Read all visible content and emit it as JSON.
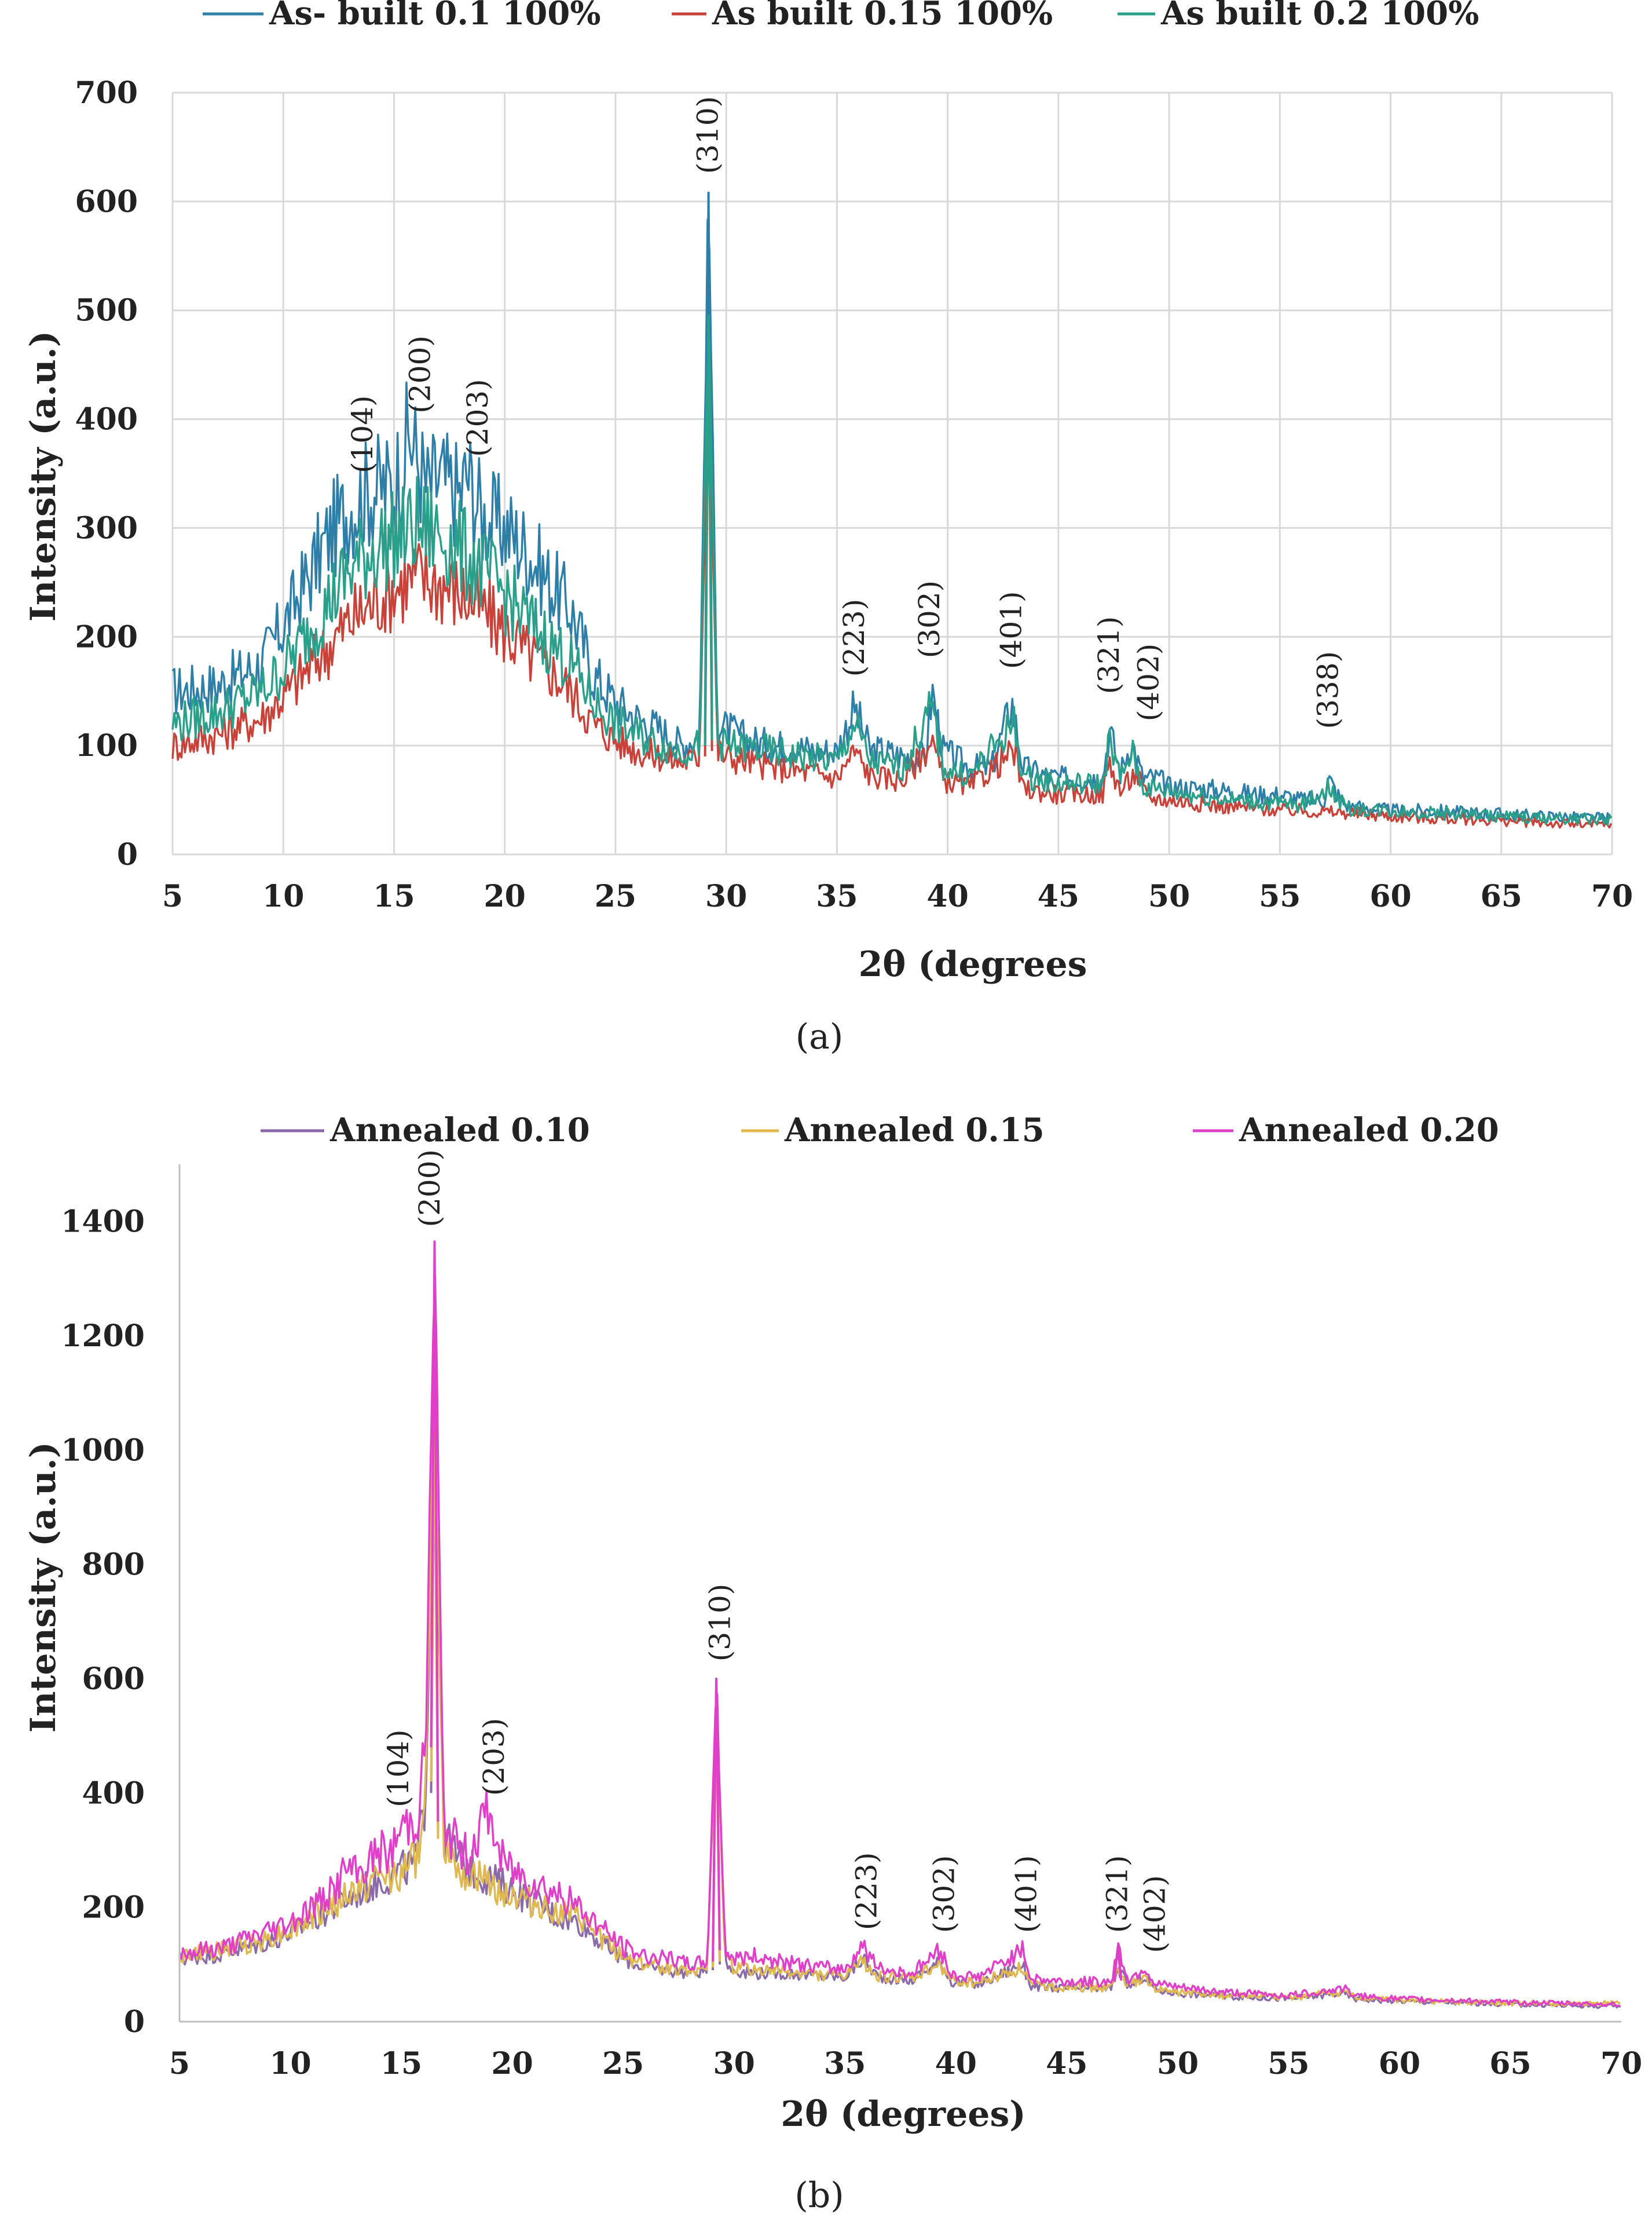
{
  "chart_data": [
    {
      "panel": "a",
      "panel_label": "(a)",
      "type": "line",
      "xlabel": "2θ (degrees",
      "ylabel": "Intensity (a.u.)",
      "xlim": [
        5,
        70
      ],
      "ylim": [
        0,
        700
      ],
      "xticks": [
        "5",
        "10",
        "15",
        "20",
        "25",
        "30",
        "35",
        "40",
        "45",
        "50",
        "55",
        "60",
        "65",
        "70"
      ],
      "yticks": [
        "0",
        "100",
        "200",
        "300",
        "400",
        "500",
        "600",
        "700"
      ],
      "legend_position": "top",
      "grid": true,
      "series": [
        {
          "name": "As- built 0.1 100%",
          "color": "#2e7fa8",
          "x": [
            5,
            7,
            9,
            10,
            12,
            13,
            14,
            15,
            15.7,
            16.5,
            17,
            18,
            18.3,
            19,
            20,
            21,
            22,
            23,
            24,
            25,
            26,
            27,
            28,
            28.8,
            29.2,
            29.6,
            30,
            31,
            32,
            33,
            34,
            35,
            35.8,
            36.5,
            37,
            38,
            39,
            39.3,
            39.8,
            41,
            42,
            42.9,
            43.4,
            44,
            45,
            46,
            47,
            47.3,
            47.8,
            48.3,
            48.8,
            49.5,
            50,
            52,
            54,
            55,
            56,
            57,
            57.2,
            57.6,
            58,
            60,
            62,
            64,
            66,
            68,
            70
          ],
          "y": [
            150,
            155,
            175,
            210,
            290,
            320,
            335,
            340,
            385,
            335,
            345,
            330,
            350,
            310,
            300,
            280,
            250,
            225,
            165,
            140,
            125,
            115,
            100,
            110,
            608,
            120,
            115,
            105,
            100,
            100,
            95,
            95,
            135,
            95,
            95,
            90,
            90,
            150,
            95,
            80,
            80,
            140,
            80,
            75,
            70,
            70,
            70,
            115,
            75,
            105,
            70,
            70,
            62,
            60,
            55,
            55,
            50,
            50,
            70,
            55,
            45,
            40,
            40,
            38,
            36,
            34,
            33
          ]
        },
        {
          "name": "As built 0.15 100%",
          "color": "#c9423a",
          "x": [
            5,
            7,
            9,
            10,
            12,
            13,
            14,
            15,
            16,
            17,
            18,
            19,
            20,
            21,
            22,
            23,
            24,
            25,
            26,
            27,
            28,
            28.8,
            29.2,
            29.6,
            30,
            32,
            34,
            35,
            35.8,
            36.5,
            38,
            39.3,
            39.8,
            41,
            43,
            43.4,
            45,
            47,
            47.3,
            47.8,
            48.5,
            49,
            50,
            52,
            54,
            56,
            58,
            60,
            62,
            64,
            66,
            68,
            70
          ],
          "y": [
            100,
            110,
            125,
            145,
            190,
            215,
            230,
            245,
            255,
            250,
            240,
            225,
            205,
            185,
            170,
            150,
            120,
            105,
            95,
            90,
            85,
            90,
            470,
            95,
            90,
            80,
            75,
            70,
            95,
            72,
            68,
            105,
            68,
            62,
            95,
            60,
            55,
            55,
            85,
            58,
            75,
            52,
            50,
            45,
            42,
            40,
            38,
            35,
            33,
            32,
            30,
            28,
            27
          ]
        },
        {
          "name": "As built 0.2 100%",
          "color": "#2aa08a",
          "x": [
            5,
            7,
            9,
            10,
            12,
            13,
            14,
            15,
            16,
            17,
            18,
            19,
            20,
            21,
            22,
            23,
            24,
            25,
            26,
            27,
            28,
            28.8,
            29.2,
            29.6,
            30,
            31,
            32,
            34,
            35,
            35.8,
            36.5,
            38,
            39.3,
            39.8,
            41,
            43,
            43.4,
            45,
            47,
            47.3,
            47.8,
            48.3,
            48.8,
            50,
            52,
            54,
            56,
            57.2,
            58,
            60,
            62,
            64,
            66,
            68,
            70
          ],
          "y": [
            120,
            130,
            150,
            170,
            230,
            260,
            280,
            290,
            300,
            295,
            280,
            260,
            240,
            215,
            195,
            175,
            140,
            120,
            110,
            100,
            95,
            100,
            495,
            105,
            100,
            98,
            95,
            88,
            85,
            120,
            85,
            80,
            135,
            80,
            72,
            120,
            72,
            65,
            65,
            105,
            68,
            95,
            62,
            58,
            52,
            48,
            45,
            62,
            42,
            40,
            38,
            36,
            34,
            33,
            32
          ]
        }
      ],
      "annotations": [
        {
          "label": "(104)",
          "x": 13.6,
          "y": 345
        },
        {
          "label": "(200)",
          "x": 16.2,
          "y": 400
        },
        {
          "label": "(203)",
          "x": 18.8,
          "y": 360
        },
        {
          "label": "(310)",
          "x": 29.2,
          "y": 620
        },
        {
          "label": "(223)",
          "x": 35.8,
          "y": 158
        },
        {
          "label": "(302)",
          "x": 39.2,
          "y": 175
        },
        {
          "label": "(401)",
          "x": 42.9,
          "y": 165
        },
        {
          "label": "(321)",
          "x": 47.3,
          "y": 142
        },
        {
          "label": "(402)",
          "x": 49.1,
          "y": 117
        },
        {
          "label": "(338)",
          "x": 57.2,
          "y": 110
        }
      ]
    },
    {
      "panel": "b",
      "panel_label": "(b)",
      "type": "line",
      "xlabel": "2θ (degrees)",
      "ylabel": "Intensity (a.u.)",
      "xlim": [
        5,
        70
      ],
      "ylim": [
        0,
        1500
      ],
      "xticks": [
        "5",
        "10",
        "15",
        "20",
        "25",
        "30",
        "35",
        "40",
        "45",
        "50",
        "55",
        "60",
        "65",
        "70"
      ],
      "yticks": [
        "0",
        "200",
        "400",
        "600",
        "800",
        "1000",
        "1200",
        "1400"
      ],
      "legend_position": "top",
      "grid": false,
      "series": [
        {
          "name": "Annealed 0.10",
          "color": "#8a6aa8",
          "x": [
            5,
            7,
            9,
            10,
            12,
            13,
            14,
            15,
            15.7,
            16.1,
            16.5,
            16.9,
            17.5,
            18,
            19,
            20,
            21,
            22,
            23,
            24,
            25,
            26,
            27,
            28,
            28.8,
            29.2,
            29.6,
            30,
            31,
            32,
            34,
            35,
            35.8,
            36.5,
            38,
            39.3,
            39.8,
            41,
            43,
            43.4,
            45,
            47,
            47.3,
            47.8,
            48.5,
            49,
            50,
            52,
            55,
            57.5,
            58,
            60,
            62,
            65,
            68,
            70
          ],
          "y": [
            110,
            120,
            140,
            155,
            200,
            225,
            245,
            265,
            280,
            400,
            1065,
            330,
            290,
            270,
            250,
            230,
            210,
            185,
            175,
            140,
            110,
            95,
            90,
            85,
            90,
            585,
            100,
            90,
            85,
            85,
            80,
            78,
            110,
            78,
            72,
            105,
            70,
            65,
            100,
            62,
            58,
            58,
            95,
            60,
            80,
            55,
            50,
            45,
            40,
            50,
            40,
            36,
            34,
            30,
            28,
            27
          ]
        },
        {
          "name": "Annealed 0.15",
          "color": "#e0b850",
          "x": [
            5,
            7,
            9,
            10,
            12,
            13,
            14,
            15,
            15.7,
            16.1,
            16.5,
            16.9,
            17.5,
            18,
            19,
            20,
            21,
            22,
            23,
            24,
            25,
            26,
            27,
            28,
            28.8,
            29.2,
            29.6,
            30,
            31,
            32,
            34,
            35,
            35.8,
            36.5,
            38,
            39.3,
            39.8,
            41,
            43,
            43.4,
            45,
            47,
            47.3,
            47.8,
            48.5,
            49,
            50,
            52,
            55,
            57.5,
            58,
            60,
            62,
            65,
            68,
            70
          ],
          "y": [
            115,
            125,
            145,
            160,
            205,
            230,
            250,
            260,
            285,
            420,
            1100,
            320,
            280,
            260,
            240,
            220,
            205,
            190,
            180,
            145,
            115,
            100,
            95,
            90,
            95,
            560,
            105,
            95,
            90,
            88,
            82,
            80,
            105,
            80,
            75,
            100,
            72,
            68,
            95,
            64,
            60,
            60,
            90,
            62,
            78,
            56,
            52,
            46,
            42,
            52,
            42,
            38,
            35,
            32,
            30,
            34
          ]
        },
        {
          "name": "Annealed 0.20",
          "color": "#e040c8",
          "x": [
            5,
            7,
            9,
            10,
            12,
            12.5,
            13,
            14,
            14.5,
            15,
            15.7,
            16.1,
            16.5,
            16.9,
            17.5,
            18,
            18.9,
            19.5,
            20,
            21,
            22,
            23,
            24,
            25,
            26,
            27,
            28,
            28.8,
            29.2,
            29.6,
            30,
            31,
            32,
            34,
            35,
            35.8,
            36.5,
            38,
            39.3,
            39.8,
            41,
            43,
            43.4,
            45,
            47,
            47.3,
            47.8,
            48.5,
            49,
            50,
            52,
            55,
            57.5,
            58,
            60,
            62,
            65,
            68,
            70
          ],
          "y": [
            120,
            130,
            160,
            175,
            230,
            270,
            255,
            300,
            290,
            340,
            355,
            480,
            1365,
            350,
            310,
            290,
            370,
            285,
            265,
            245,
            225,
            200,
            165,
            130,
            115,
            110,
            100,
            105,
            600,
            125,
            110,
            115,
            105,
            95,
            92,
            135,
            92,
            85,
            125,
            82,
            78,
            125,
            75,
            70,
            70,
            130,
            72,
            95,
            65,
            60,
            52,
            46,
            58,
            45,
            40,
            38,
            34,
            32,
            30
          ]
        }
      ],
      "annotations": [
        {
          "label": "(104)",
          "x": 14.9,
          "y": 365
        },
        {
          "label": "(200)",
          "x": 16.3,
          "y": 1380
        },
        {
          "label": "(203)",
          "x": 19.2,
          "y": 385
        },
        {
          "label": "(310)",
          "x": 29.4,
          "y": 620
        },
        {
          "label": "(223)",
          "x": 36.0,
          "y": 150
        },
        {
          "label": "(302)",
          "x": 39.5,
          "y": 145
        },
        {
          "label": "(401)",
          "x": 43.2,
          "y": 145
        },
        {
          "label": "(321)",
          "x": 47.3,
          "y": 145
        },
        {
          "label": "(402)",
          "x": 49.0,
          "y": 110
        }
      ]
    }
  ]
}
